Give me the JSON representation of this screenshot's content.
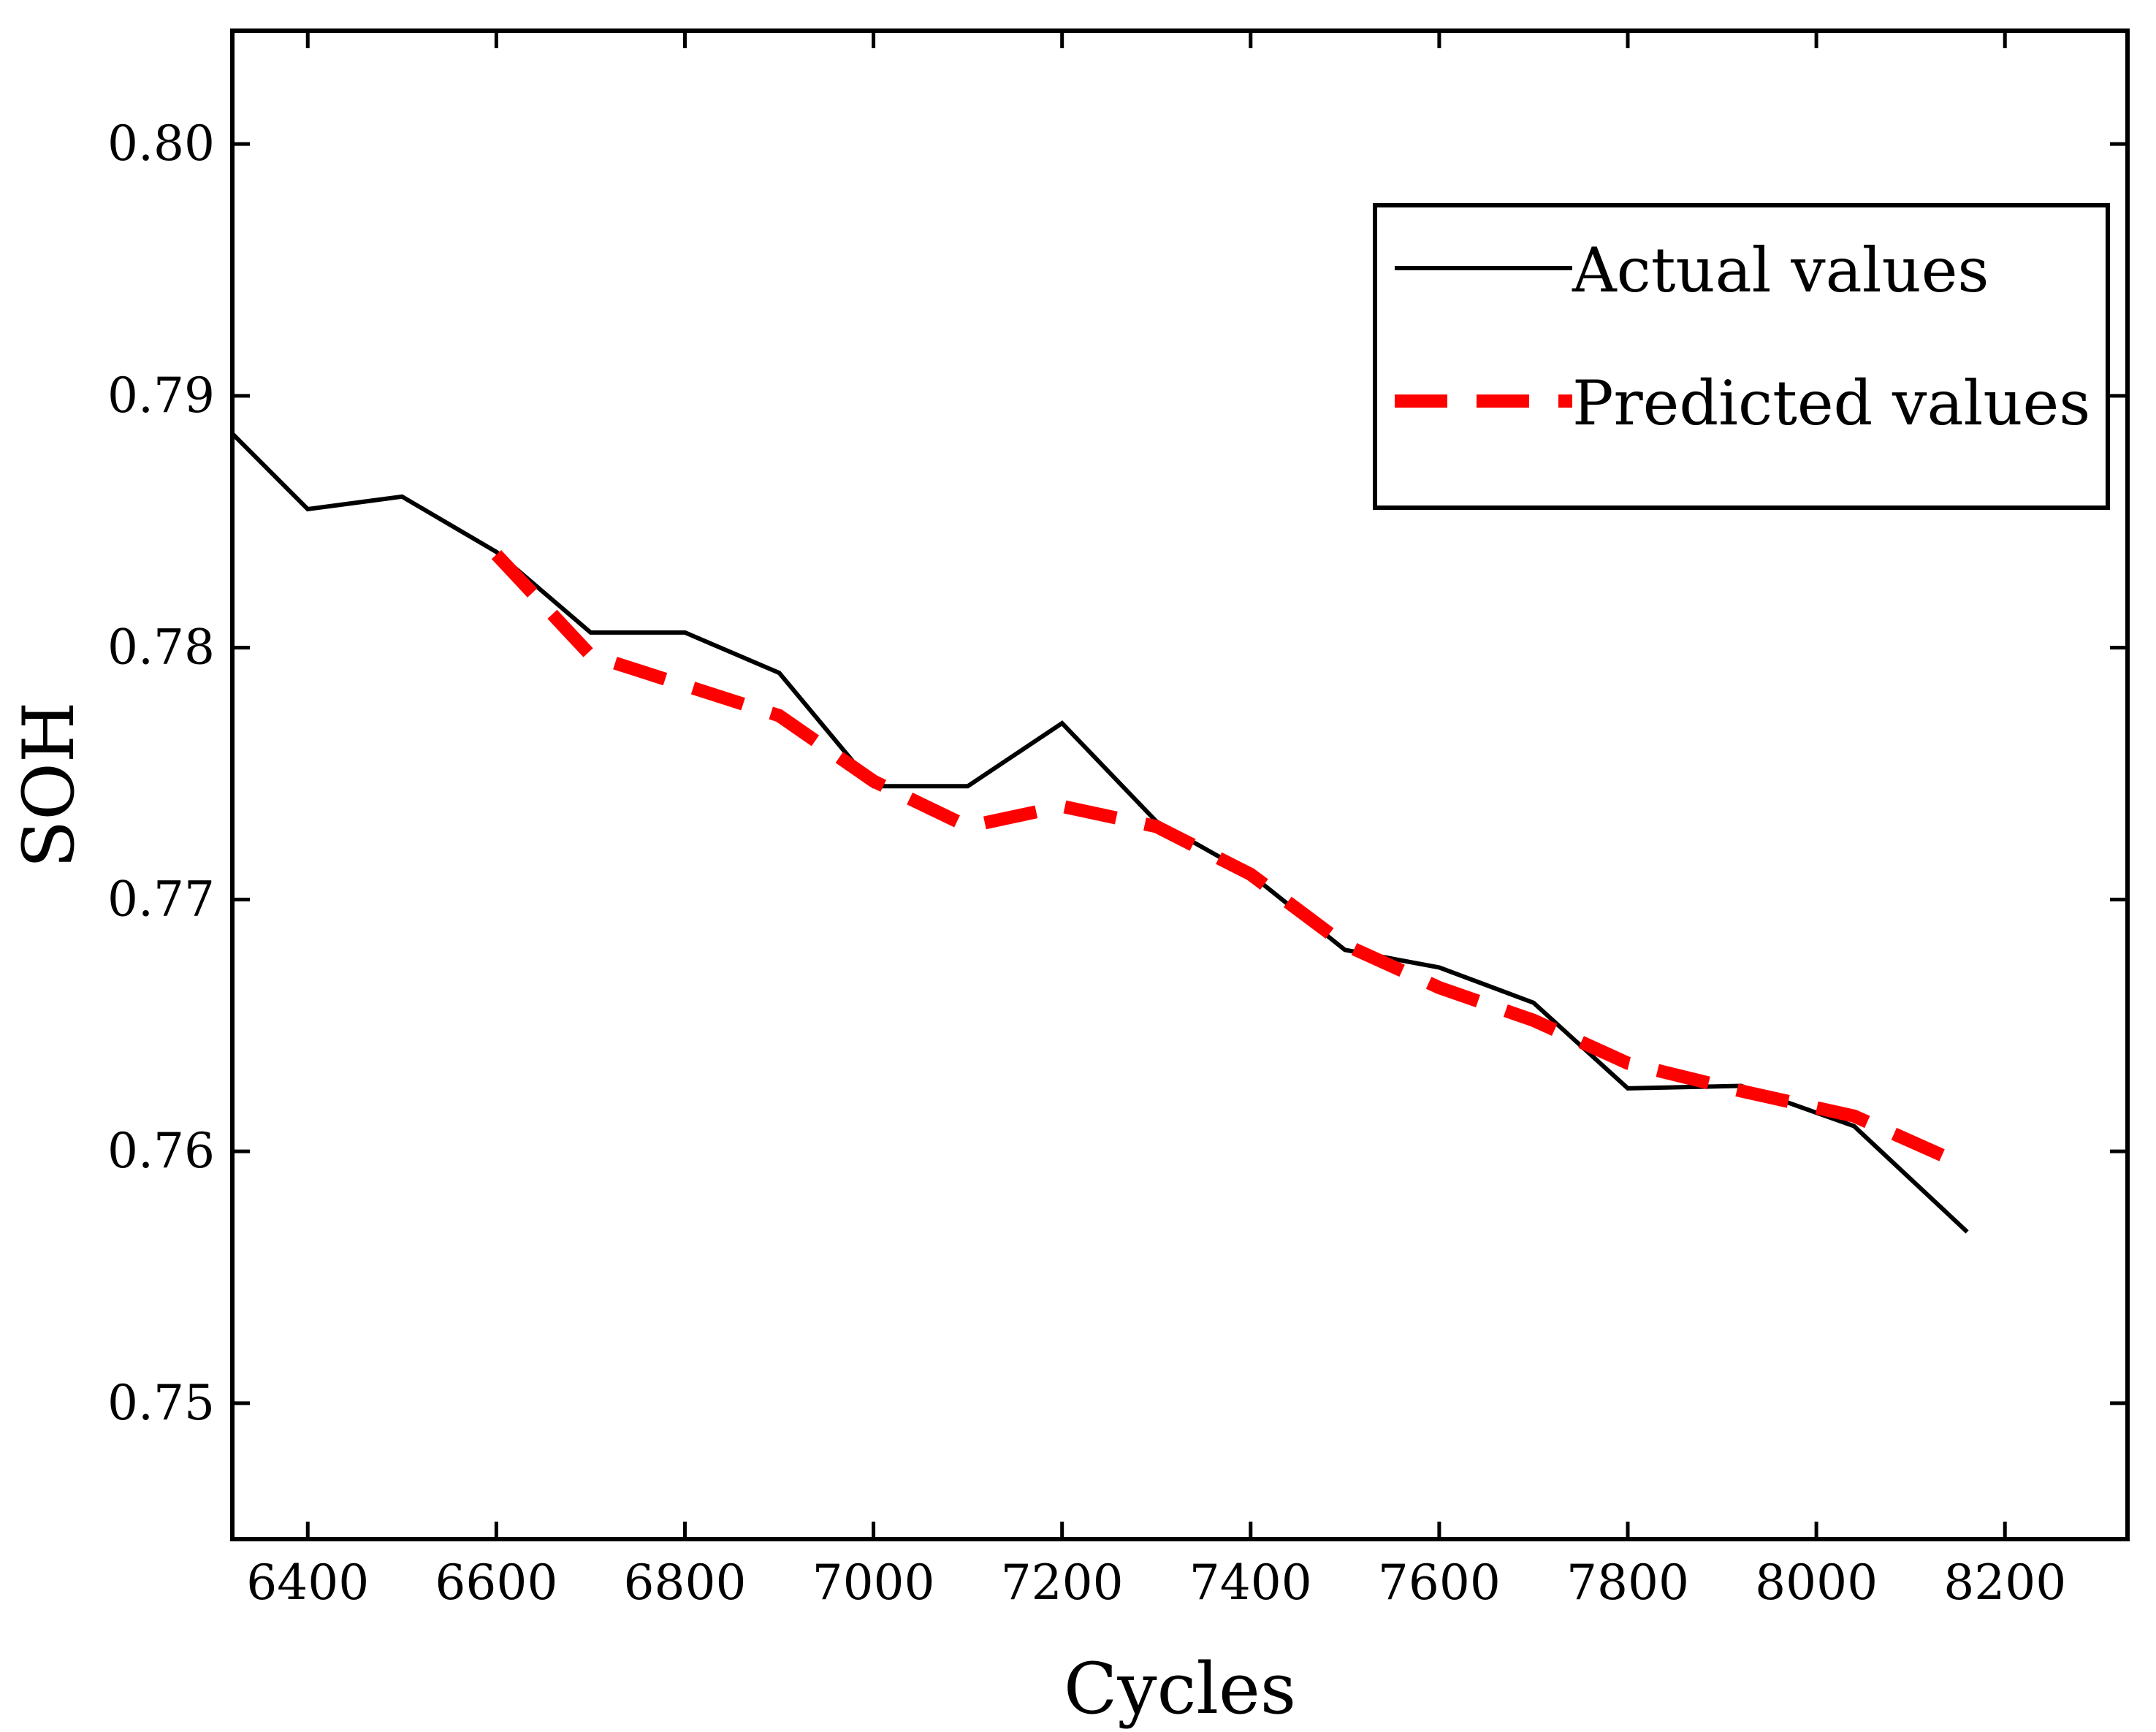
{
  "chart_data": {
    "type": "line",
    "title": "",
    "xlabel": "Cycles",
    "ylabel": "SOH",
    "xlim": [
      6320,
      8330
    ],
    "ylim": [
      0.7446,
      0.8045
    ],
    "xticks": [
      6400,
      6600,
      6800,
      7000,
      7200,
      7400,
      7600,
      7800,
      8000,
      8200
    ],
    "yticks": [
      0.75,
      0.76,
      0.77,
      0.78,
      0.79,
      0.8
    ],
    "xtick_labels": [
      "6400",
      "6600",
      "6800",
      "7000",
      "7200",
      "7400",
      "7600",
      "7800",
      "8000",
      "8200"
    ],
    "ytick_labels": [
      "0.75",
      "0.76",
      "0.77",
      "0.78",
      "0.79",
      "0.80"
    ],
    "grid": false,
    "legend": {
      "placement": "top-right",
      "entries": [
        {
          "label": "Actual values",
          "color": "#000000",
          "style": "solid"
        },
        {
          "label": "Predicted values",
          "color": "#ff0000",
          "style": "dashed"
        }
      ]
    },
    "series": [
      {
        "name": "Actual values",
        "color": "#000000",
        "style": "solid",
        "x": [
          6320,
          6400,
          6500,
          6600,
          6700,
          6800,
          6900,
          7000,
          7100,
          7200,
          7300,
          7400,
          7500,
          7600,
          7700,
          7800,
          7920,
          8040,
          8160
        ],
        "y": [
          0.7885,
          0.7855,
          0.786,
          0.7838,
          0.7806,
          0.7806,
          0.779,
          0.7745,
          0.7745,
          0.777,
          0.7731,
          0.771,
          0.768,
          0.7673,
          0.7659,
          0.7625,
          0.7626,
          0.761,
          0.7568
        ]
      },
      {
        "name": "Predicted values",
        "color": "#ff0000",
        "style": "dashed",
        "x": [
          6600,
          6700,
          6800,
          6900,
          7000,
          7100,
          7200,
          7300,
          7400,
          7500,
          7600,
          7700,
          7800,
          7920,
          8040,
          8160
        ],
        "y": [
          0.7837,
          0.7797,
          0.7785,
          0.7773,
          0.7747,
          0.7729,
          0.7737,
          0.7729,
          0.771,
          0.7682,
          0.7665,
          0.7652,
          0.7635,
          0.7624,
          0.7614,
          0.7594
        ]
      }
    ]
  }
}
